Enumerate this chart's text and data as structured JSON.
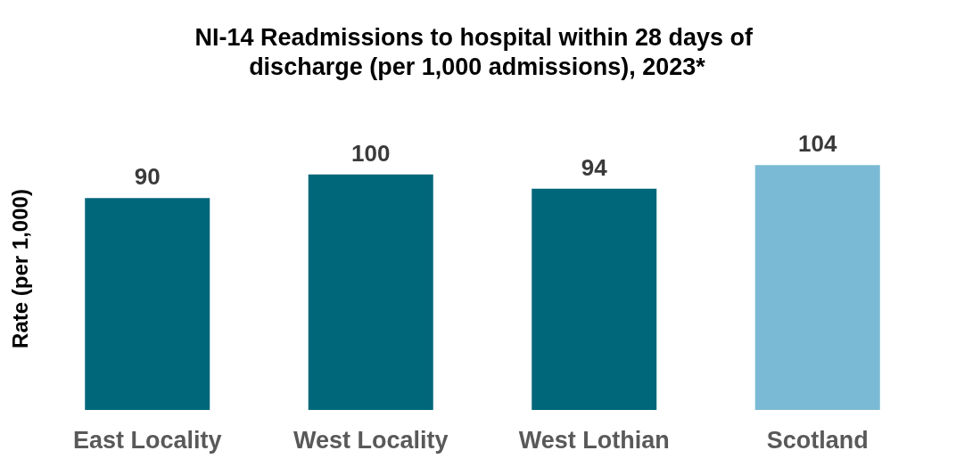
{
  "chart_data": {
    "type": "bar",
    "title": "NI-14 Readmissions to hospital within 28 days of discharge (per 1,000 admissions), 2023*",
    "ylabel": "Rate (per 1,000)",
    "categories": [
      "East Locality",
      "West Locality",
      "West Lothian",
      "Scotland"
    ],
    "values": [
      90,
      100,
      94,
      104
    ],
    "colors": [
      "#00677a",
      "#00677a",
      "#00667a",
      "#7bbad4"
    ],
    "data_labels": true,
    "tick_labels": "x"
  }
}
